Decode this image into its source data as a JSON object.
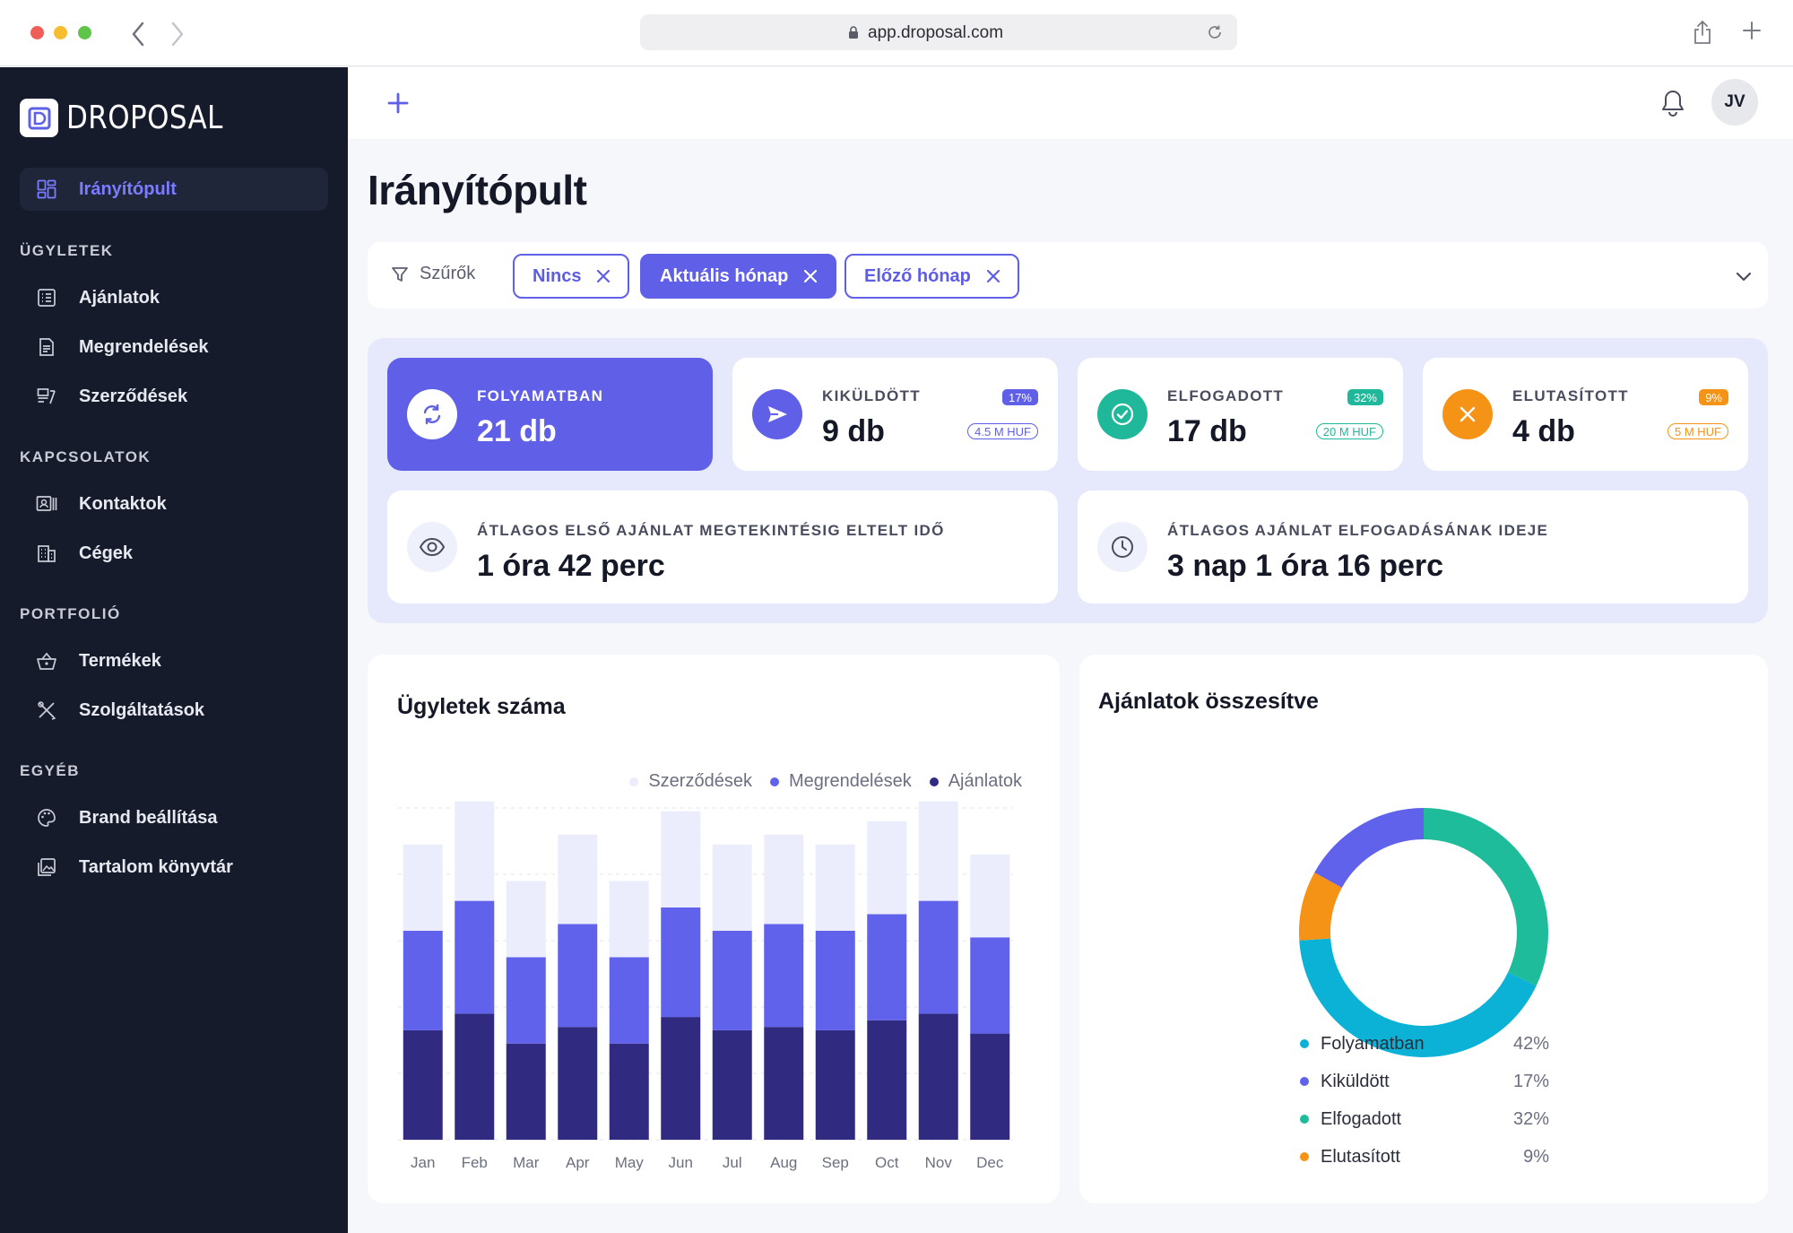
{
  "browser": {
    "url": "app.droposal.com"
  },
  "app": {
    "logo_text": "DROPOSAL"
  },
  "sidebar": {
    "active_item": {
      "label": "Irányítópult",
      "icon": "dashboard-icon"
    },
    "sections": [
      {
        "title": "ÜGYLETEK",
        "items": [
          {
            "label": "Ajánlatok",
            "icon": "list-icon"
          },
          {
            "label": "Megrendelések",
            "icon": "document-icon"
          },
          {
            "label": "Szerződések",
            "icon": "contract-icon"
          }
        ]
      },
      {
        "title": "KAPCSOLATOK",
        "items": [
          {
            "label": "Kontaktok",
            "icon": "contact-card-icon"
          },
          {
            "label": "Cégek",
            "icon": "building-icon"
          }
        ]
      },
      {
        "title": "PORTFOLIÓ",
        "items": [
          {
            "label": "Termékek",
            "icon": "basket-icon"
          },
          {
            "label": "Szolgáltatások",
            "icon": "tools-icon"
          }
        ]
      },
      {
        "title": "EGYÉB",
        "items": [
          {
            "label": "Brand beállítása",
            "icon": "palette-icon"
          },
          {
            "label": "Tartalom könyvtár",
            "icon": "gallery-icon"
          }
        ]
      }
    ]
  },
  "topbar": {
    "avatar_initials": "JV"
  },
  "page": {
    "title": "Irányítópult"
  },
  "filters": {
    "label": "Szűrők",
    "chips": [
      {
        "label": "Nincs",
        "active": false
      },
      {
        "label": "Aktuális hónap",
        "active": true
      },
      {
        "label": "Előző hónap",
        "active": false
      }
    ]
  },
  "stats": {
    "in_progress": {
      "title": "FOLYAMATBAN",
      "value": "21 db"
    },
    "sent": {
      "title": "KIKÜLDÖTT",
      "value": "9 db",
      "percent": "17%",
      "amount": "4.5 M HUF",
      "color": "#5f5fe8"
    },
    "accepted": {
      "title": "ELFOGADOTT",
      "value": "17 db",
      "percent": "32%",
      "amount": "20 M HUF",
      "color": "#1fb89a"
    },
    "rejected": {
      "title": "ELUTASÍTOTT",
      "value": "4 db",
      "percent": "9%",
      "amount": "5 M HUF",
      "color": "#f59316"
    },
    "avg_first_view": {
      "title": "ÁTLAGOS ELSŐ AJÁNLAT MEGTEKINTÉSIG ELTELT IDŐ",
      "value": "1 óra 42 perc"
    },
    "avg_acceptance": {
      "title": "ÁTLAGOS AJÁNLAT ELFOGADÁSÁNAK IDEJE",
      "value": "3 nap 1 óra 16 perc"
    }
  },
  "deals_chart": {
    "title": "Ügyletek száma",
    "chart_data": {
      "type": "bar",
      "stacked": true,
      "categories": [
        "Jan",
        "Feb",
        "Mar",
        "Apr",
        "May",
        "Jun",
        "Jul",
        "Aug",
        "Sep",
        "Oct",
        "Nov",
        "Dec"
      ],
      "series": [
        {
          "name": "Ajánlatok",
          "color": "#302a80",
          "values": [
            33,
            38,
            29,
            34,
            29,
            37,
            33,
            34,
            33,
            36,
            38,
            32
          ]
        },
        {
          "name": "Megrendelések",
          "color": "#6062ec",
          "values": [
            30,
            34,
            26,
            31,
            26,
            33,
            30,
            31,
            30,
            32,
            34,
            29
          ]
        },
        {
          "name": "Szerződések",
          "color": "#ebedfc",
          "values": [
            26,
            30,
            23,
            27,
            23,
            29,
            26,
            27,
            26,
            28,
            30,
            25
          ]
        }
      ],
      "legend_order": [
        "Szerződések",
        "Megrendelések",
        "Ajánlatok"
      ],
      "ylim": [
        0,
        100
      ],
      "grid": true,
      "legend": "top-right",
      "xlabel": "",
      "ylabel": ""
    }
  },
  "offers_chart": {
    "title": "Ajánlatok összesítve",
    "chart_data": {
      "type": "pie",
      "donut": true,
      "labels": [
        "Folyamatban",
        "Kiküldött",
        "Elfogadott",
        "Elutasított"
      ],
      "values": [
        42,
        17,
        32,
        9
      ],
      "display": [
        "42%",
        "17%",
        "32%",
        "9%"
      ],
      "colors": [
        "#0bb2d6",
        "#6062ec",
        "#1fbc9c",
        "#f59316"
      ]
    }
  }
}
